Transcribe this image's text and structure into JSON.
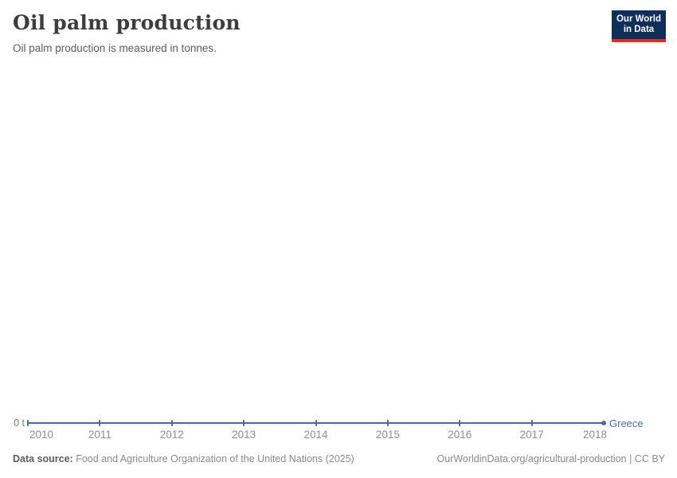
{
  "header": {
    "title": "Oil palm production",
    "subtitle": "Oil palm production is measured in tonnes.",
    "logo": {
      "line1": "Our World",
      "line2": "in Data"
    }
  },
  "chart_data": {
    "type": "line",
    "title": "Oil palm production",
    "subtitle": "Oil palm production is measured in tonnes.",
    "unit": "tonnes",
    "x": [
      2010,
      2011,
      2012,
      2013,
      2014,
      2015,
      2016,
      2017,
      2018
    ],
    "series": [
      {
        "name": "Greece",
        "values": [
          0,
          0,
          0,
          0,
          0,
          0,
          0,
          0,
          0
        ],
        "color": "#4a69a5"
      }
    ],
    "xlabel": "",
    "ylabel": "",
    "y_axis_tick_label": "0 t",
    "ylim": [
      0,
      0
    ],
    "grid": false,
    "legend_position": "end-of-line"
  },
  "colors": {
    "line": "#4a69a5",
    "entity_label": "#4970b4",
    "tick_label": "#8f8f8f",
    "logo_bg": "#0e2e5c",
    "logo_red": "#e02b1d"
  },
  "footer": {
    "source_label": "Data source:",
    "source_text": " Food and Agriculture Organization of the United Nations (2025)",
    "link_text": "OurWorldinData.org/agricultural-production",
    "license_suffix": " | CC BY"
  }
}
